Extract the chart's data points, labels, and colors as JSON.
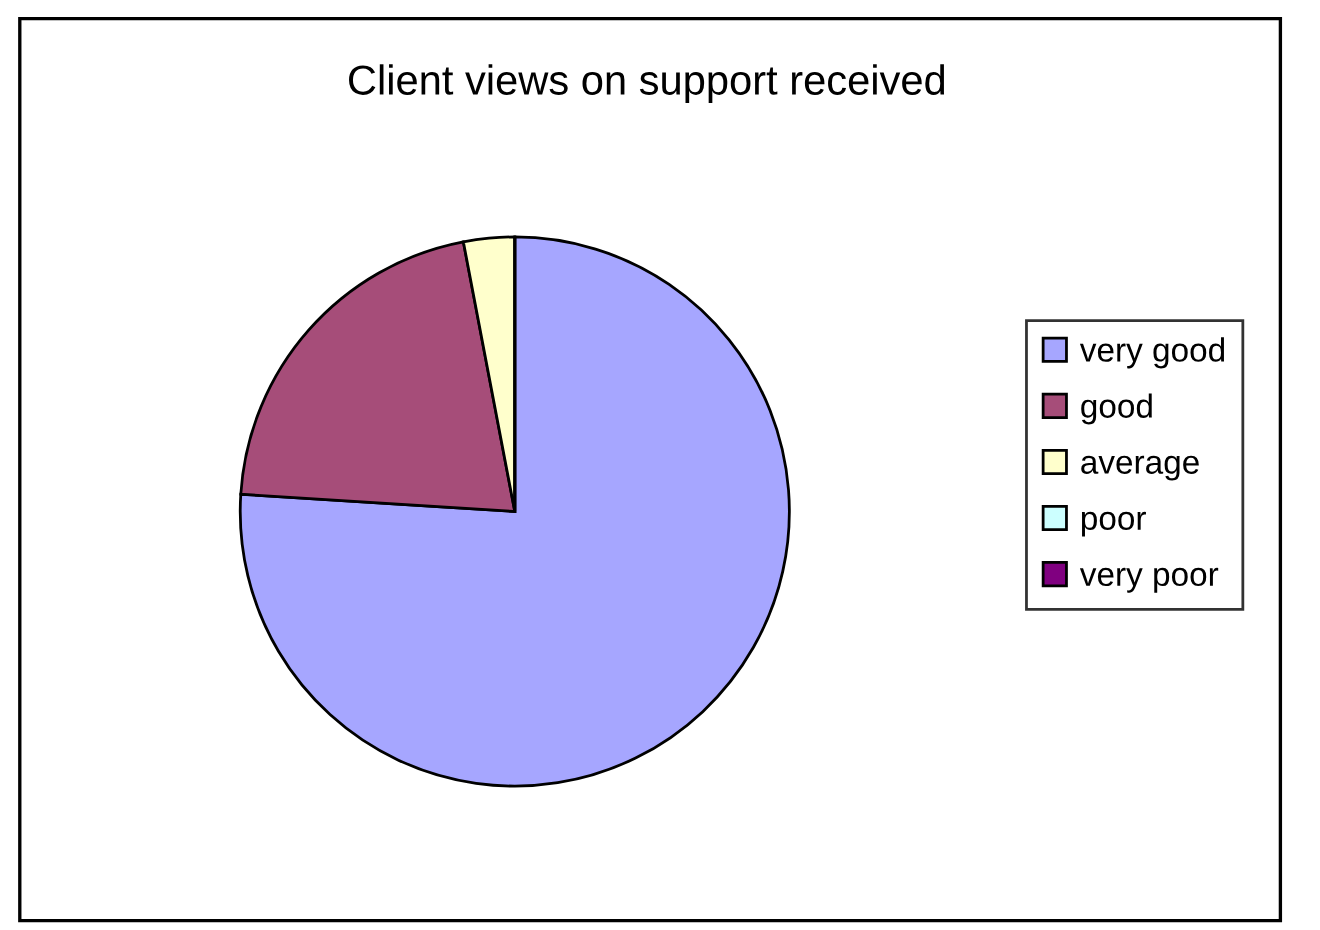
{
  "chart_data": {
    "type": "pie",
    "title": "Client views on support received",
    "categories": [
      "very good",
      "good",
      "average",
      "poor",
      "very poor"
    ],
    "values": [
      76,
      21,
      3,
      0,
      0
    ],
    "colors": [
      "#a6a6ff",
      "#a64d79",
      "#ffffcc",
      "#ccffff",
      "#800080"
    ],
    "legend": "right"
  }
}
